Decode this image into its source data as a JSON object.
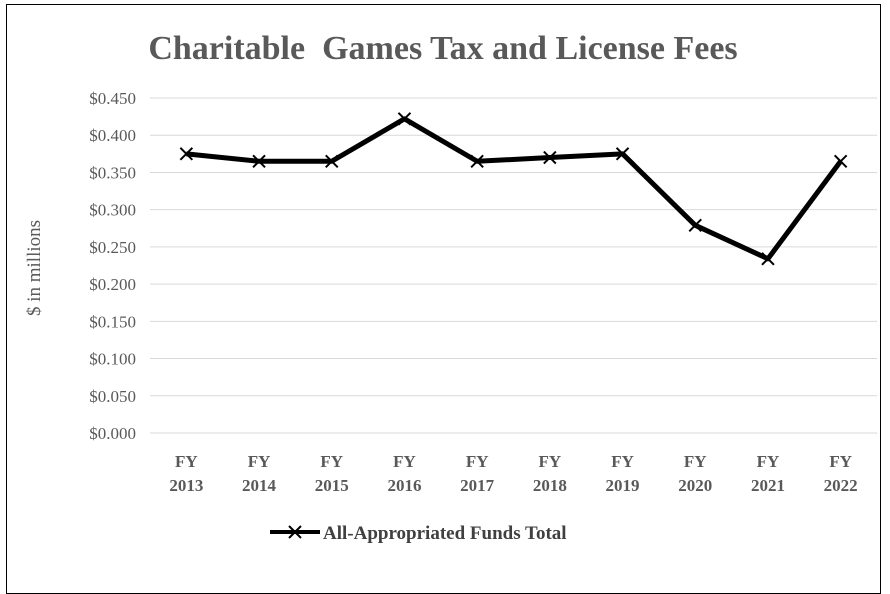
{
  "chart_data": {
    "type": "line",
    "title": "Charitable  Games Tax and License Fees",
    "ylabel": "$ in millions",
    "xlabel": "",
    "categories": [
      [
        "FY",
        "2013"
      ],
      [
        "FY",
        "2014"
      ],
      [
        "FY",
        "2015"
      ],
      [
        "FY",
        "2016"
      ],
      [
        "FY",
        "2017"
      ],
      [
        "FY",
        "2018"
      ],
      [
        "FY",
        "2019"
      ],
      [
        "FY",
        "2020"
      ],
      [
        "FY",
        "2021"
      ],
      [
        "FY",
        "2022"
      ]
    ],
    "series": [
      {
        "name": "All-Appropriated Funds Total",
        "values": [
          0.375,
          0.365,
          0.365,
          0.422,
          0.365,
          0.37,
          0.375,
          0.279,
          0.234,
          0.365
        ]
      }
    ],
    "ylim": [
      0,
      0.45
    ],
    "yticks": [
      {
        "value": 0.45,
        "label": "$0.450"
      },
      {
        "value": 0.4,
        "label": "$0.400"
      },
      {
        "value": 0.35,
        "label": "$0.350"
      },
      {
        "value": 0.3,
        "label": "$0.300"
      },
      {
        "value": 0.25,
        "label": "$0.250"
      },
      {
        "value": 0.2,
        "label": "$0.200"
      },
      {
        "value": 0.15,
        "label": "$0.150"
      },
      {
        "value": 0.1,
        "label": "$0.100"
      },
      {
        "value": 0.05,
        "label": "$0.050"
      },
      {
        "value": 0.0,
        "label": "$0.000"
      }
    ],
    "grid": true,
    "legend_position": "bottom",
    "colors": {
      "line": "#000000",
      "grid": "#d9d9d9",
      "text": "#595959"
    }
  }
}
